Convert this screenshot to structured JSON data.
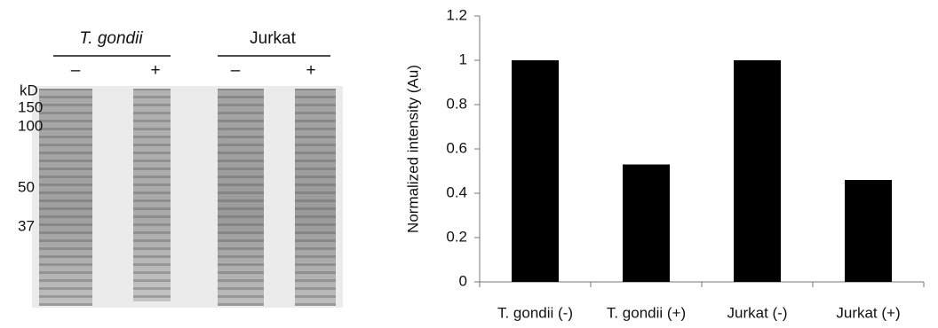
{
  "gel": {
    "groups": [
      "T. gondii",
      "Jurkat"
    ],
    "signs": [
      "–",
      "+",
      "–",
      "+"
    ],
    "unit": "kD",
    "markers": [
      "150",
      "100",
      "50",
      "37"
    ]
  },
  "chart_data": {
    "type": "bar",
    "y_label": "Normalized intensity (Au)",
    "categories": [
      "T. gondii (-)",
      "T. gondii (+)",
      "Jurkat (-)",
      "Jurkat (+)"
    ],
    "values": [
      1,
      0.53,
      1,
      0.46
    ],
    "color": "#000000",
    "ylim": [
      0,
      1.2
    ],
    "yticks": [
      0,
      0.2,
      0.4,
      0.6,
      0.8,
      1,
      1.2
    ],
    "grid": false
  }
}
